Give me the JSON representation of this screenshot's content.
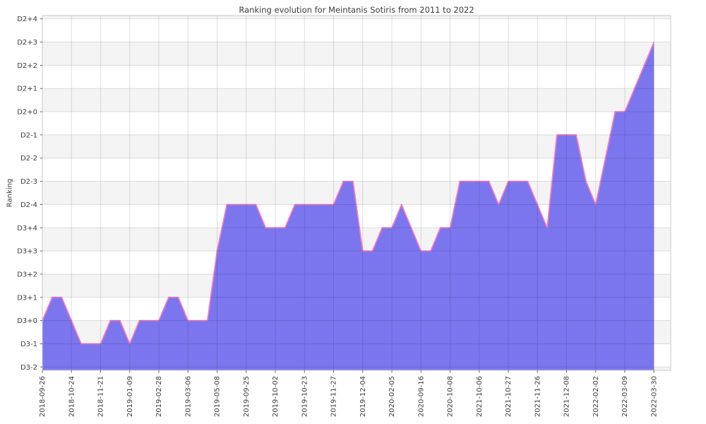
{
  "title": "Ranking evolution for Meintanis Sotiris from 2011 to 2022",
  "chart_data": {
    "type": "area",
    "title": "Ranking evolution for Meintanis Sotiris from 2011 to 2022",
    "xlabel": "",
    "ylabel": "Ranking",
    "grid": true,
    "legend": false,
    "y_tick_labels_bottom_to_top": [
      "D3-2",
      "D3-1",
      "D3+0",
      "D3+1",
      "D3+2",
      "D3+3",
      "D3+4",
      "D2-4",
      "D2-3",
      "D2-2",
      "D2-1",
      "D2+0",
      "D2+1",
      "D2+2",
      "D2+3",
      "D2+4"
    ],
    "x_tick_labels": [
      "2018-09-26",
      "2018-10-24",
      "2018-11-21",
      "2019-01-09",
      "2019-02-28",
      "2019-03-06",
      "2019-05-08",
      "2019-09-25",
      "2019-10-02",
      "2019-10-23",
      "2019-11-27",
      "2019-12-04",
      "2020-02-05",
      "2020-09-16",
      "2020-10-08",
      "2021-10-06",
      "2021-10-27",
      "2021-11-26",
      "2021-12-08",
      "2022-02-02",
      "2022-03-09",
      "2022-03-30"
    ],
    "points_per_tick_interval": 3,
    "series": [
      {
        "name": "ranking",
        "values": [
          "D3+0",
          "D3+1",
          "D3+1",
          "D3+0",
          "D3-1",
          "D3-1",
          "D3-1",
          "D3+0",
          "D3+0",
          "D3-1",
          "D3+0",
          "D3+0",
          "D3+0",
          "D3+1",
          "D3+1",
          "D3+0",
          "D3+0",
          "D3+0",
          "D3+3",
          "D2-4",
          "D2-4",
          "D2-4",
          "D2-4",
          "D3+4",
          "D3+4",
          "D3+4",
          "D2-4",
          "D2-4",
          "D2-4",
          "D2-4",
          "D2-4",
          "D2-3",
          "D2-3",
          "D3+3",
          "D3+3",
          "D3+4",
          "D3+4",
          "D2-4",
          "D3+4",
          "D3+3",
          "D3+3",
          "D3+4",
          "D3+4",
          "D2-3",
          "D2-3",
          "D2-3",
          "D2-3",
          "D2-4",
          "D2-3",
          "D2-3",
          "D2-3",
          "D2-4",
          "D3+4",
          "D2-1",
          "D2-1",
          "D2-1",
          "D2-3",
          "D2-4",
          "D2-2",
          "D2+0",
          "D2+0",
          "D2+1",
          "D2+2",
          "D2+3"
        ]
      }
    ],
    "colors": {
      "area_fill": "#7b76ee",
      "line": "#f87cc1",
      "band_light": "#ffffff",
      "band_shaded": "#f4f4f4",
      "grid": "#000000",
      "border": "#c8c8c8",
      "tick": "#555555",
      "text": "#3c3c3c",
      "background": "#ffffff"
    }
  }
}
